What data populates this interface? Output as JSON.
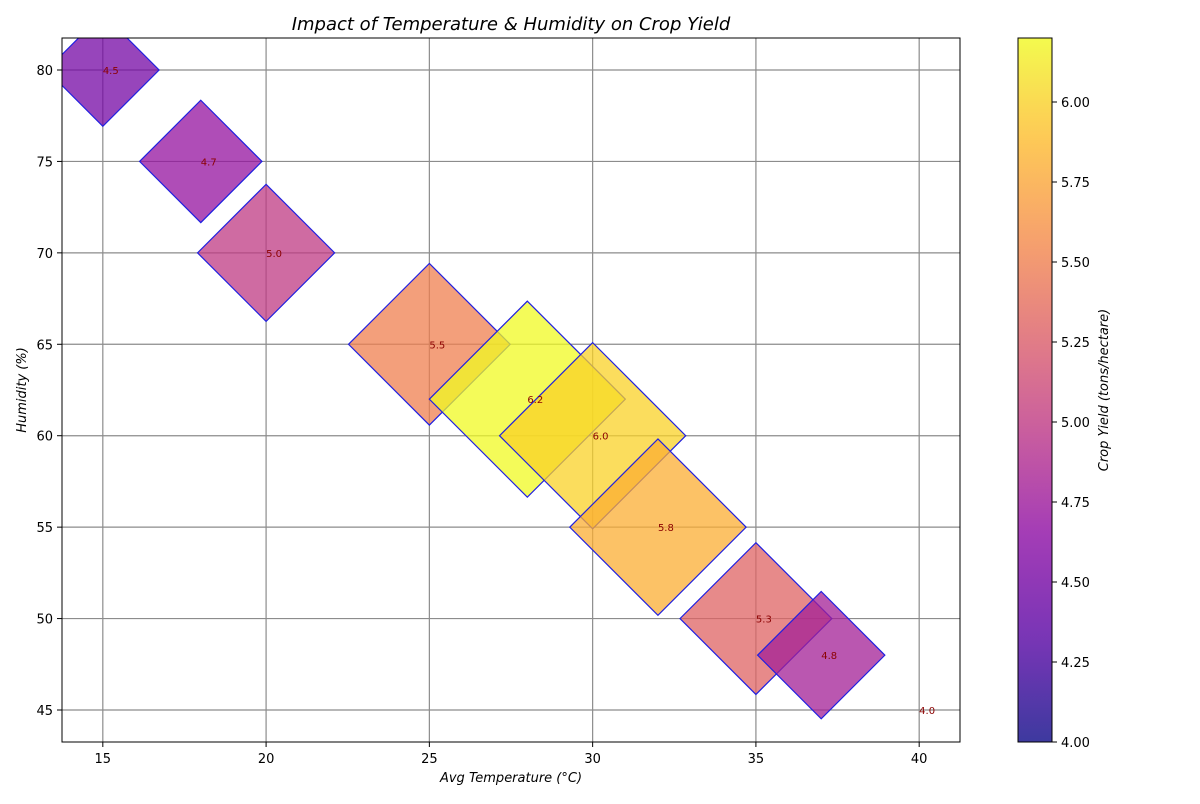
{
  "chart_data": {
    "type": "scatter",
    "title": "Impact of Temperature & Humidity on Crop Yield",
    "xlabel": "Avg Temperature (°C)",
    "ylabel": "Humidity (%)",
    "colorbar_label": "Crop Yield (tons/hectare)",
    "xlim": [
      13.75,
      41.25
    ],
    "ylim": [
      43.25,
      81.75
    ],
    "x_ticks": [
      15,
      20,
      25,
      30,
      35,
      40
    ],
    "y_ticks": [
      45,
      50,
      55,
      60,
      65,
      70,
      75,
      80
    ],
    "colorbar_ticks": [
      "4.00",
      "4.25",
      "4.50",
      "4.75",
      "5.00",
      "5.25",
      "5.50",
      "5.75",
      "6.00"
    ],
    "colorbar_range": [
      4.0,
      6.2
    ],
    "colormap": "plasma",
    "marker": "diamond",
    "marker_edge_color": "#2020e0",
    "label_color": "#8b0000",
    "grid": true,
    "points": [
      {
        "x": 15,
        "y": 80,
        "yield": 4.5,
        "label": "4.5"
      },
      {
        "x": 18,
        "y": 75,
        "yield": 4.7,
        "label": "4.7"
      },
      {
        "x": 20,
        "y": 70,
        "yield": 5.0,
        "label": "5.0"
      },
      {
        "x": 25,
        "y": 65,
        "yield": 5.5,
        "label": "5.5"
      },
      {
        "x": 28,
        "y": 62,
        "yield": 6.2,
        "label": "6.2"
      },
      {
        "x": 30,
        "y": 60,
        "yield": 6.0,
        "label": "6.0"
      },
      {
        "x": 32,
        "y": 55,
        "yield": 5.8,
        "label": "5.8"
      },
      {
        "x": 35,
        "y": 50,
        "yield": 5.3,
        "label": "5.3"
      },
      {
        "x": 37,
        "y": 48,
        "yield": 4.8,
        "label": "4.8"
      },
      {
        "x": 40,
        "y": 45,
        "yield": 4.0,
        "label": "4.0"
      }
    ]
  }
}
